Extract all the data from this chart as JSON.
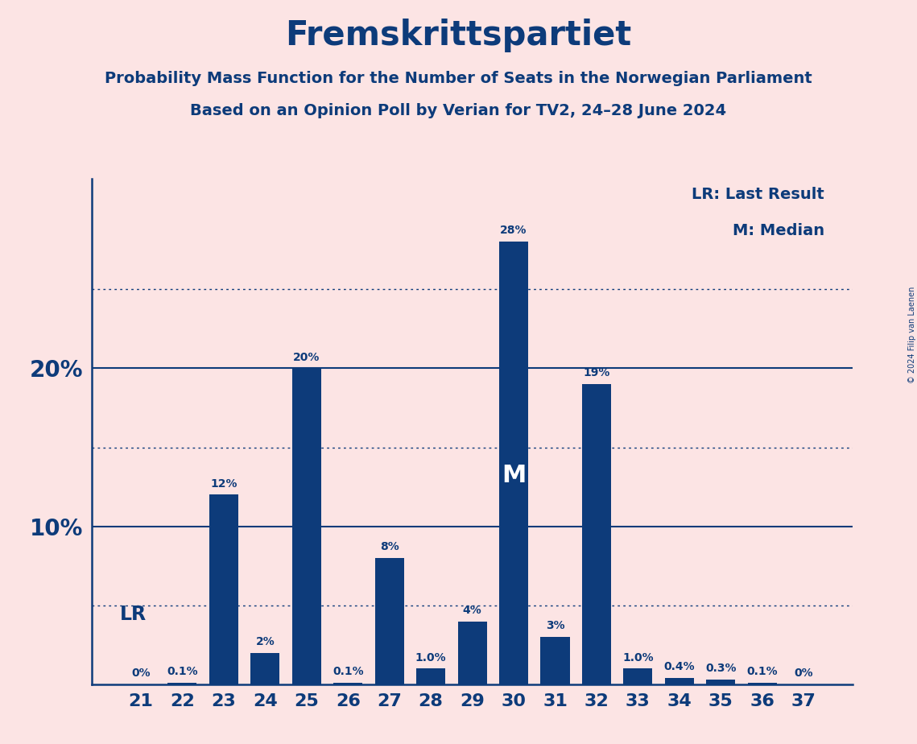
{
  "title": "Fremskrittspartiet",
  "subtitle1": "Probability Mass Function for the Number of Seats in the Norwegian Parliament",
  "subtitle2": "Based on an Opinion Poll by Verian for TV2, 24–28 June 2024",
  "copyright": "© 2024 Filip van Laenen",
  "seats": [
    21,
    22,
    23,
    24,
    25,
    26,
    27,
    28,
    29,
    30,
    31,
    32,
    33,
    34,
    35,
    36,
    37
  ],
  "probabilities": [
    0.0,
    0.1,
    12.0,
    2.0,
    20.0,
    0.1,
    8.0,
    1.0,
    4.0,
    28.0,
    3.0,
    19.0,
    1.0,
    0.4,
    0.3,
    0.1,
    0.0
  ],
  "labels": [
    "0%",
    "0.1%",
    "12%",
    "2%",
    "20%",
    "0.1%",
    "8%",
    "1.0%",
    "4%",
    "28%",
    "3%",
    "19%",
    "1.0%",
    "0.4%",
    "0.3%",
    "0.1%",
    "0%"
  ],
  "bar_color": "#0d3b7a",
  "background_color": "#fce4e4",
  "text_color": "#0d3b7a",
  "median_seat": 30,
  "last_result_seat": 21,
  "solid_yticks": [
    10,
    20
  ],
  "dotted_yticks": [
    5,
    15,
    25
  ],
  "ylim": [
    0,
    32
  ],
  "legend_lr": "LR: Last Result",
  "legend_m": "M: Median"
}
